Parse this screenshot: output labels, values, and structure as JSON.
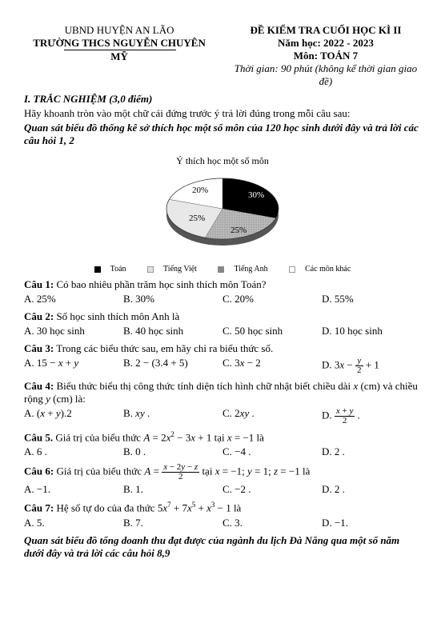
{
  "header": {
    "left_line1": "UBND HUYỆN AN LÃO",
    "left_line2_prefix": "TRƯỜ",
    "left_line2_underline": "NG THCS NGUYỄN CH",
    "left_line2_suffix": "UYÊN MỸ",
    "right_line1": "ĐỀ KIỂM TRA CUỐI HỌC KÌ II",
    "right_line2": "Năm học: 2022 - 2023",
    "right_line3": "Môn: TOÁN 7",
    "right_line4": "Thời gian: 90 phút (không kể thời gian giao đề)"
  },
  "section1": {
    "title": "I. TRẮC NGHIỆM (3,0 điểm)",
    "instr": "Hãy khoanh tròn vào một chữ cái đứng trước ý trả lời đúng trong mỗi câu sau:",
    "observe": "Quan sát biểu đồ thống kê sở thích học một số môn của 120 học sinh dưới đây và trả lời các câu hỏi 1, 2"
  },
  "chart": {
    "title": "Ý thích học một số môn",
    "slices": [
      {
        "label": "30%",
        "color": "#000000",
        "text_color": "#ffffff"
      },
      {
        "label": "25%",
        "color": "#888888",
        "text_color": "#000000",
        "pattern": "dense"
      },
      {
        "label": "25%",
        "color": "#e0e0e0",
        "text_color": "#000000"
      },
      {
        "label": "20%",
        "color": "#ffffff",
        "text_color": "#000000"
      }
    ],
    "legend": [
      {
        "name": "Toán",
        "color": "#000000"
      },
      {
        "name": "Tiếng Việt",
        "color": "#e0e0e0"
      },
      {
        "name": "Tiếng Anh",
        "color": "#888888"
      },
      {
        "name": "Các môn khác",
        "color": "#ffffff"
      }
    ]
  },
  "questions": [
    {
      "id": "q1",
      "head": "Câu 1: Có bao nhiêu phần trăm học sinh thích môn Toán?",
      "opts": [
        "A. 25%",
        "B. 30%",
        "C. 20%",
        "D. 55%"
      ]
    },
    {
      "id": "q2",
      "head": "Câu 2: Số học sinh thích môn Anh là",
      "opts": [
        "A. 30 học sinh",
        "B. 40 học sinh",
        "C. 50 học sinh",
        "D. 10 học sinh"
      ]
    },
    {
      "id": "q3",
      "head": "Câu 3: Trong các biểu thức sau, em hãy chỉ ra biểu thức số.",
      "opts_html": true,
      "opts": [
        "A. 15 − <i>x</i> + <i>y</i>",
        "B. 2 − (3.4 + 5)",
        "C. 3<i>x</i> − 2",
        "D. 3<i>x</i> − <span class='frac'><span class='n'><i>y</i></span><span class='d'>2</span></span> + 1"
      ]
    },
    {
      "id": "q4",
      "head_html": true,
      "head": "<b>Câu 4:</b> Biểu thức biểu thị công thức tính diện tích hình chữ nhật biết chiều dài <i>x</i> (cm) và chiều rộng <i>y</i> (cm) là:",
      "opts_html": true,
      "opts": [
        "A. (<i>x</i> + <i>y</i>).2",
        "B. <i>xy</i> .",
        "C. 2<i>xy</i> .",
        "D. <span class='frac'><span class='n'><i>x</i> + <i>y</i></span><span class='d'>2</span></span> ."
      ]
    },
    {
      "id": "q5",
      "head_html": true,
      "head": "<b>Câu 5.</b> Giá trị của biểu thức <i>A</i> = 2<i>x</i><sup>2</sup> − 3<i>x</i> + 1 tại <i>x</i> = −1 là",
      "opts": [
        "A. 6 .",
        "B. 0 .",
        "C. −4 .",
        "D. 2 ."
      ]
    },
    {
      "id": "q6",
      "head_html": true,
      "head": "<b>Câu 6:</b> Giá trị của biểu thức <i>A</i> = <span class='frac'><span class='n'><i>x</i> − 2<i>y</i> − <i>z</i></span><span class='d'>2</span></span> tại <i>x</i> = −1; <i>y</i> = 1; <i>z</i> = −1 là",
      "opts": [
        "A. −1.",
        "B. 1.",
        "C. −2 .",
        "D. 2 ."
      ]
    },
    {
      "id": "q7",
      "head_html": true,
      "head": "<b>Câu 7:</b> Hệ số tự do của đa thức 5<i>x</i><sup>7</sup> + 7<i>x</i><sup>5</sup> + <i>x</i><sup>3</sup> − 1 là",
      "opts": [
        "A. 5.",
        "B. 7.",
        "C. 3.",
        "D. −1."
      ]
    }
  ],
  "footer_note": "Quan sát biểu đồ tổng doanh thu đạt được của ngành du lịch Đà Nẵng qua một số năm dưới đây và trả lời các câu hỏi 8,9"
}
